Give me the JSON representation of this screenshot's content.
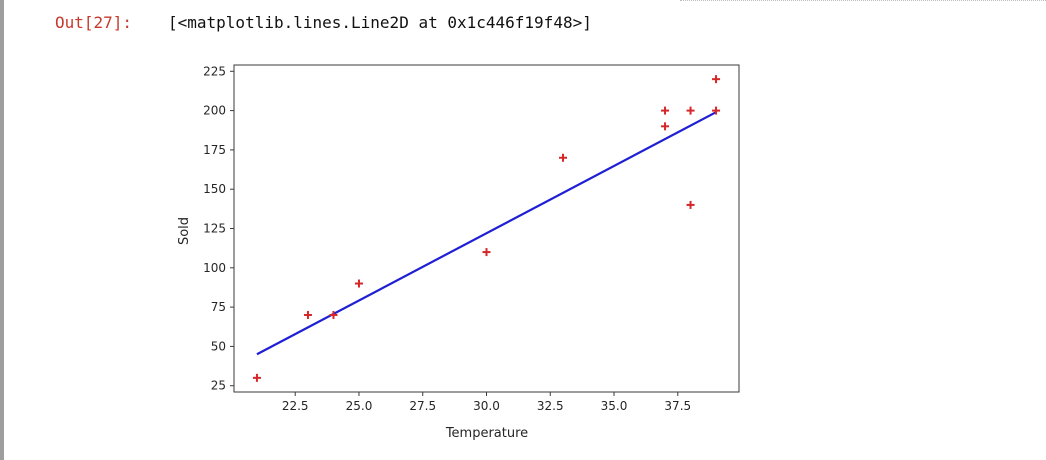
{
  "cell": {
    "prompt": "Out[27]:",
    "output_text": "[<matplotlib.lines.Line2D at 0x1c446f19f48>]"
  },
  "chart_data": {
    "type": "scatter",
    "xlabel": "Temperature",
    "ylabel": "Sold",
    "xlim": [
      20.1,
      39.9
    ],
    "ylim": [
      21,
      229
    ],
    "x_ticks": [
      "22.5",
      "25.0",
      "27.5",
      "30.0",
      "32.5",
      "35.0",
      "37.5"
    ],
    "y_ticks": [
      "25",
      "50",
      "75",
      "100",
      "125",
      "150",
      "175",
      "200",
      "225"
    ],
    "grid": false,
    "series": [
      {
        "kind": "scatter",
        "marker": "plus",
        "color": "#d62728",
        "points": [
          {
            "x": 21,
            "y": 30
          },
          {
            "x": 23,
            "y": 70
          },
          {
            "x": 24,
            "y": 70
          },
          {
            "x": 25,
            "y": 90
          },
          {
            "x": 30,
            "y": 110
          },
          {
            "x": 33,
            "y": 170
          },
          {
            "x": 37,
            "y": 200
          },
          {
            "x": 37,
            "y": 190
          },
          {
            "x": 38,
            "y": 200
          },
          {
            "x": 38,
            "y": 140
          },
          {
            "x": 39,
            "y": 220
          },
          {
            "x": 39,
            "y": 200
          }
        ]
      },
      {
        "kind": "line",
        "color": "#1f1fd6",
        "points": [
          {
            "x": 21,
            "y": 45
          },
          {
            "x": 39,
            "y": 199
          }
        ]
      }
    ]
  }
}
